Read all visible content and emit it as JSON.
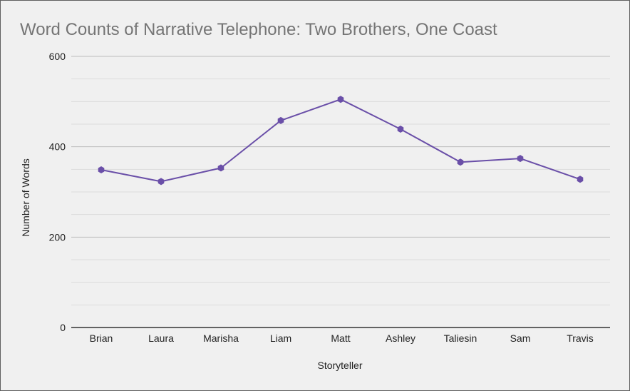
{
  "chart_data": {
    "type": "line",
    "title": "Word Counts of Narrative Telephone: Two Brothers, One Coast",
    "xlabel": "Storyteller",
    "ylabel": "Number of Words",
    "categories": [
      "Brian",
      "Laura",
      "Marisha",
      "Liam",
      "Matt",
      "Ashley",
      "Taliesin",
      "Sam",
      "Travis"
    ],
    "series": [
      {
        "values": [
          349,
          323,
          353,
          458,
          505,
          439,
          366,
          374,
          328
        ]
      }
    ],
    "ylim": [
      0,
      600
    ],
    "yticks": [
      0,
      200,
      400,
      600
    ],
    "grid": true,
    "minor_grid": true,
    "legend": "none",
    "colors": {
      "line": "#6a4fa8",
      "major_grid": "#bdbdbd",
      "minor_grid": "#dcdcdc",
      "axis": "#333333"
    }
  }
}
